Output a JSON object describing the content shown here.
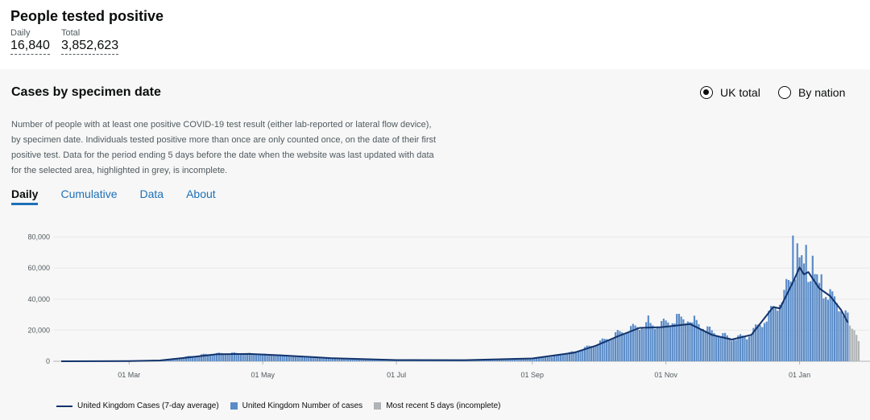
{
  "header": {
    "title": "People tested positive",
    "daily_label": "Daily",
    "daily_value": "16,840",
    "total_label": "Total",
    "total_value": "3,852,623"
  },
  "card": {
    "title": "Cases by specimen date",
    "radio_uk": "UK total",
    "radio_nation": "By nation",
    "selected": "UK total",
    "description": "Number of people with at least one positive COVID-19 test result (either lab-reported or lateral flow device), by specimen date. Individuals tested positive more than once are only counted once, on the date of their first positive test. Data for the period ending 5 days before the date when the website was last updated with data for the selected area, highlighted in grey, is incomplete.",
    "tabs": [
      "Daily",
      "Cumulative",
      "Data",
      "About"
    ],
    "active_tab": "Daily"
  },
  "legend": {
    "avg": "United Kingdom Cases (7-day average)",
    "cases": "United Kingdom Number of cases",
    "recent": "Most recent 5 days (incomplete)"
  },
  "colors": {
    "bar": "#5b8cc8",
    "avg_line": "#12336b",
    "incomplete": "#b1b4b6",
    "grid": "#e8e8e8"
  },
  "chart_data": {
    "type": "bar",
    "title": "Cases by specimen date",
    "x_range": [
      "2020-01-30",
      "2021-01-28"
    ],
    "ylim": [
      0,
      85000
    ],
    "y_ticks": [
      0,
      20000,
      40000,
      60000,
      80000
    ],
    "y_tick_labels": [
      "0",
      "20,000",
      "40,000",
      "60,000",
      "80,000"
    ],
    "x_tick_labels": [
      "01 Mar",
      "01 May",
      "01 Jul",
      "01 Sep",
      "01 Nov",
      "01 Jan"
    ],
    "x_tick_dates": [
      "2020-03-01",
      "2020-05-01",
      "2020-07-01",
      "2020-09-01",
      "2020-11-01",
      "2021-01-01"
    ],
    "grid": true,
    "legend_position": "bottom",
    "series": [
      {
        "name": "United Kingdom Number of cases",
        "kind": "bar",
        "points": [
          [
            "2020-01-30",
            0
          ],
          [
            "2020-03-01",
            100
          ],
          [
            "2020-03-15",
            500
          ],
          [
            "2020-03-25",
            2500
          ],
          [
            "2020-04-05",
            4500
          ],
          [
            "2020-04-15",
            5300
          ],
          [
            "2020-04-25",
            4800
          ],
          [
            "2020-05-05",
            4200
          ],
          [
            "2020-05-15",
            3200
          ],
          [
            "2020-06-01",
            2000
          ],
          [
            "2020-06-15",
            1300
          ],
          [
            "2020-07-01",
            850
          ],
          [
            "2020-07-15",
            700
          ],
          [
            "2020-08-01",
            750
          ],
          [
            "2020-08-15",
            1000
          ],
          [
            "2020-09-01",
            1900
          ],
          [
            "2020-09-10",
            3200
          ],
          [
            "2020-09-20",
            6000
          ],
          [
            "2020-09-30",
            11000
          ],
          [
            "2020-10-10",
            18000
          ],
          [
            "2020-10-20",
            23000
          ],
          [
            "2020-10-30",
            24000
          ],
          [
            "2020-11-05",
            27000
          ],
          [
            "2020-11-12",
            28000
          ],
          [
            "2020-11-22",
            19000
          ],
          [
            "2020-12-01",
            15000
          ],
          [
            "2020-12-08",
            16000
          ],
          [
            "2020-12-15",
            25000
          ],
          [
            "2020-12-22",
            37000
          ],
          [
            "2020-12-29",
            55000
          ],
          [
            "2021-01-01",
            62000
          ],
          [
            "2021-01-05",
            58000
          ],
          [
            "2021-01-10",
            48000
          ],
          [
            "2021-01-15",
            43000
          ],
          [
            "2021-01-20",
            35000
          ],
          [
            "2021-01-23",
            28000
          ]
        ],
        "spikes": [
          [
            "2020-10-24",
            29500
          ],
          [
            "2020-11-06",
            30500
          ],
          [
            "2020-11-13",
            25000
          ],
          [
            "2020-12-25",
            46000
          ],
          [
            "2020-12-29",
            81000
          ],
          [
            "2020-12-31",
            76000
          ],
          [
            "2021-01-04",
            75000
          ],
          [
            "2021-01-07",
            68000
          ],
          [
            "2021-01-11",
            56000
          ],
          [
            "2021-01-16",
            45000
          ]
        ]
      },
      {
        "name": "United Kingdom Cases (7-day average)",
        "kind": "line",
        "points": [
          [
            "2020-01-30",
            0
          ],
          [
            "2020-03-01",
            100
          ],
          [
            "2020-03-15",
            500
          ],
          [
            "2020-03-25",
            2000
          ],
          [
            "2020-04-10",
            4500
          ],
          [
            "2020-04-25",
            4700
          ],
          [
            "2020-05-10",
            3800
          ],
          [
            "2020-06-01",
            2000
          ],
          [
            "2020-07-01",
            800
          ],
          [
            "2020-08-01",
            750
          ],
          [
            "2020-09-01",
            1800
          ],
          [
            "2020-09-20",
            5500
          ],
          [
            "2020-09-30",
            10000
          ],
          [
            "2020-10-10",
            16000
          ],
          [
            "2020-10-20",
            21500
          ],
          [
            "2020-10-30",
            22000
          ],
          [
            "2020-11-12",
            24000
          ],
          [
            "2020-11-22",
            17000
          ],
          [
            "2020-12-01",
            14000
          ],
          [
            "2020-12-10",
            17000
          ],
          [
            "2020-12-20",
            35000
          ],
          [
            "2020-12-23",
            34000
          ],
          [
            "2020-12-29",
            51000
          ],
          [
            "2021-01-01",
            60500
          ],
          [
            "2021-01-03",
            56000
          ],
          [
            "2021-01-05",
            57500
          ],
          [
            "2021-01-10",
            47000
          ],
          [
            "2021-01-15",
            42000
          ],
          [
            "2021-01-20",
            33000
          ],
          [
            "2021-01-23",
            25000
          ]
        ]
      },
      {
        "name": "Most recent 5 days (incomplete)",
        "kind": "bar",
        "points": [
          [
            "2021-01-24",
            23000
          ],
          [
            "2021-01-25",
            21000
          ],
          [
            "2021-01-26",
            20000
          ],
          [
            "2021-01-27",
            17000
          ],
          [
            "2021-01-28",
            13000
          ]
        ]
      }
    ]
  }
}
